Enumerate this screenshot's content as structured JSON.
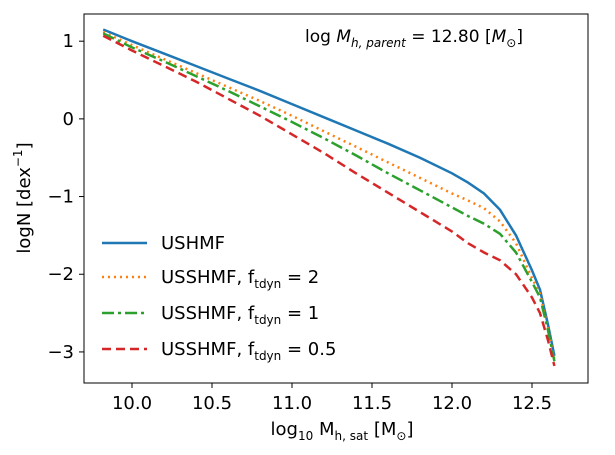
{
  "chart_data": {
    "type": "line",
    "title": "",
    "xlabel_main": "log",
    "xlabel_sub": "10",
    "xlabel_mid": " M",
    "xlabel_mid_sub": "h, sat",
    "xlabel_unit": "[M",
    "xlabel_unit_sub": "⊙",
    "xlabel_close": "]",
    "ylabel_main": "logN [dex",
    "ylabel_sup": "−1",
    "ylabel_close": "]",
    "xlim": [
      9.7,
      12.85
    ],
    "ylim": [
      -3.4,
      1.35
    ],
    "xticks": [
      10.0,
      10.5,
      11.0,
      11.5,
      12.0,
      12.5
    ],
    "xtick_labels": [
      "10.0",
      "10.5",
      "11.0",
      "11.5",
      "12.0",
      "12.5"
    ],
    "yticks": [
      1,
      0,
      -1,
      -2,
      -3
    ],
    "ytick_labels": [
      "1",
      "0",
      "−1",
      "−2",
      "−3"
    ],
    "annotation": {
      "prefix": "log ",
      "symbol": "M",
      "symbol_sub": "h, parent",
      "value": " = 12.80 [",
      "unit": "M",
      "unit_sub": "⊙",
      "close": "]"
    },
    "legend_position": "lower-left",
    "series": [
      {
        "name": "USHMF",
        "label_main": "USHMF",
        "label_sub": "",
        "label_eq": "",
        "color": "#1f77b4",
        "dash": "",
        "x": [
          9.82,
          10.0,
          10.2,
          10.4,
          10.6,
          10.8,
          11.0,
          11.2,
          11.4,
          11.6,
          11.8,
          12.0,
          12.1,
          12.2,
          12.3,
          12.4,
          12.5,
          12.55,
          12.6,
          12.64
        ],
        "y": [
          1.15,
          1.0,
          0.84,
          0.68,
          0.52,
          0.36,
          0.19,
          0.02,
          -0.15,
          -0.32,
          -0.5,
          -0.7,
          -0.82,
          -0.96,
          -1.17,
          -1.5,
          -1.95,
          -2.2,
          -2.65,
          -3.05
        ]
      },
      {
        "name": "USSHMF, f_tdyn = 2",
        "label_main": "USSHMF, f",
        "label_sub": "tdyn",
        "label_eq": " = 2",
        "color": "#ff7f0e",
        "dash": "2,4",
        "x": [
          9.82,
          10.0,
          10.2,
          10.4,
          10.6,
          10.8,
          11.0,
          11.2,
          11.4,
          11.6,
          11.8,
          12.0,
          12.1,
          12.2,
          12.3,
          12.4,
          12.5,
          12.55,
          12.6,
          12.64
        ],
        "y": [
          1.12,
          0.95,
          0.77,
          0.59,
          0.41,
          0.23,
          0.04,
          -0.16,
          -0.36,
          -0.56,
          -0.76,
          -0.96,
          -1.05,
          -1.15,
          -1.32,
          -1.6,
          -2.05,
          -2.25,
          -2.7,
          -3.1
        ]
      },
      {
        "name": "USSHMF, f_tdyn = 1",
        "label_main": "USSHMF, f",
        "label_sub": "tdyn",
        "label_eq": " = 1",
        "color": "#2ca02c",
        "dash": "12,4,3,4",
        "x": [
          9.82,
          10.0,
          10.2,
          10.4,
          10.6,
          10.8,
          11.0,
          11.2,
          11.4,
          11.6,
          11.8,
          12.0,
          12.1,
          12.2,
          12.3,
          12.4,
          12.5,
          12.55,
          12.6,
          12.64
        ],
        "y": [
          1.1,
          0.92,
          0.74,
          0.55,
          0.36,
          0.16,
          -0.04,
          -0.25,
          -0.47,
          -0.7,
          -0.92,
          -1.14,
          -1.25,
          -1.35,
          -1.48,
          -1.72,
          -2.1,
          -2.3,
          -2.72,
          -3.12
        ]
      },
      {
        "name": "USSHMF, f_tdyn = 0.5",
        "label_main": "USSHMF, f",
        "label_sub": "tdyn",
        "label_eq": " = 0.5",
        "color": "#d62728",
        "dash": "9,5",
        "x": [
          9.82,
          10.0,
          10.2,
          10.4,
          10.6,
          10.8,
          11.0,
          11.2,
          11.4,
          11.6,
          11.8,
          12.0,
          12.1,
          12.2,
          12.3,
          12.4,
          12.5,
          12.55,
          12.6,
          12.64
        ],
        "y": [
          1.07,
          0.88,
          0.68,
          0.48,
          0.26,
          0.04,
          -0.2,
          -0.44,
          -0.7,
          -0.95,
          -1.2,
          -1.45,
          -1.6,
          -1.72,
          -1.82,
          -2.0,
          -2.3,
          -2.5,
          -2.85,
          -3.18
        ]
      }
    ]
  }
}
